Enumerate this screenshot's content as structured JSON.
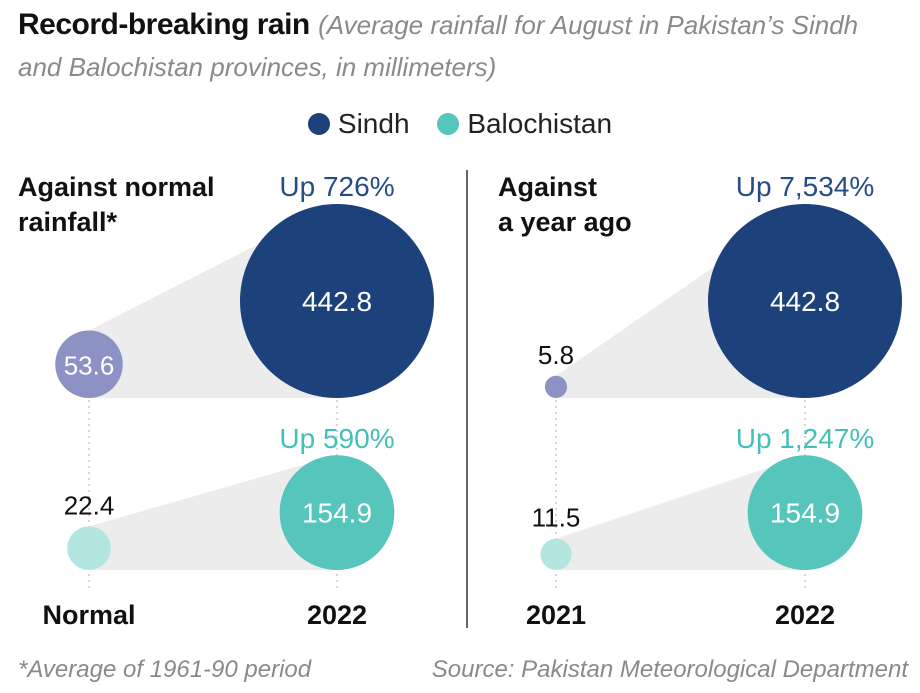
{
  "title": "Record-breaking rain",
  "subtitle": "(Average rainfall for August in Pakistan’s Sindh and Balochistan provinces, in millimeters)",
  "legend": {
    "sindh": "Sindh",
    "balochistan": "Balochistan"
  },
  "colors": {
    "sindh": "#1d417a",
    "sindh_light": "#8c92c4",
    "balochistan": "#56c5bc",
    "balochistan_light": "#b4e6e1",
    "band": "#ececec",
    "sindh_label": "#264c86",
    "balochistan_label": "#45bfb7"
  },
  "chart_data": [
    {
      "type": "bubble",
      "title": "Against normal rainfall*",
      "categories": [
        "Normal",
        "2022"
      ],
      "series": [
        {
          "name": "Sindh",
          "values": [
            53.6,
            442.8
          ],
          "change": "Up 726%"
        },
        {
          "name": "Balochistan",
          "values": [
            22.4,
            154.9
          ],
          "change": "Up 590%"
        }
      ]
    },
    {
      "type": "bubble",
      "title": "Against a year ago",
      "categories": [
        "2021",
        "2022"
      ],
      "series": [
        {
          "name": "Sindh",
          "values": [
            5.8,
            442.8
          ],
          "change": "Up 7,534%"
        },
        {
          "name": "Balochistan",
          "values": [
            11.5,
            154.9
          ],
          "change": "Up 1,247%"
        }
      ]
    }
  ],
  "footnote": "*Average of 1961-90 period",
  "source": "Source: Pakistan Meteorological Department"
}
